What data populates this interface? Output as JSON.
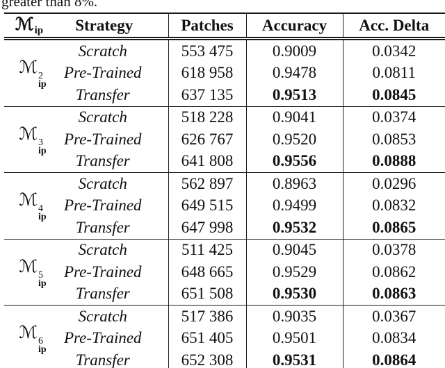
{
  "caption_fragment": "greater than 8%.",
  "table": {
    "symbol_base": "ℳ",
    "symbol_sub": "ip",
    "headers": {
      "strategy": "Strategy",
      "patches": "Patches",
      "accuracy": "Accuracy",
      "delta": "Acc. Delta"
    },
    "groups": [
      {
        "sup": "2",
        "rows": [
          {
            "strategy": "Scratch",
            "patches": "553 475",
            "accuracy": "0.9009",
            "delta": "0.0342"
          },
          {
            "strategy": "Pre-Trained",
            "patches": "618 958",
            "accuracy": "0.9478",
            "delta": "0.0811"
          },
          {
            "strategy": "Transfer",
            "patches": "637 135",
            "accuracy": "0.9513",
            "delta": "0.0845"
          }
        ]
      },
      {
        "sup": "3",
        "rows": [
          {
            "strategy": "Scratch",
            "patches": "518 228",
            "accuracy": "0.9041",
            "delta": "0.0374"
          },
          {
            "strategy": "Pre-Trained",
            "patches": "626 767",
            "accuracy": "0.9520",
            "delta": "0.0853"
          },
          {
            "strategy": "Transfer",
            "patches": "641 808",
            "accuracy": "0.9556",
            "delta": "0.0888"
          }
        ]
      },
      {
        "sup": "4",
        "rows": [
          {
            "strategy": "Scratch",
            "patches": "562 897",
            "accuracy": "0.8963",
            "delta": "0.0296"
          },
          {
            "strategy": "Pre-Trained",
            "patches": "649 515",
            "accuracy": "0.9499",
            "delta": "0.0832"
          },
          {
            "strategy": "Transfer",
            "patches": "647 998",
            "accuracy": "0.9532",
            "delta": "0.0865"
          }
        ]
      },
      {
        "sup": "5",
        "rows": [
          {
            "strategy": "Scratch",
            "patches": "511 425",
            "accuracy": "0.9045",
            "delta": "0.0378"
          },
          {
            "strategy": "Pre-Trained",
            "patches": "648 665",
            "accuracy": "0.9529",
            "delta": "0.0862"
          },
          {
            "strategy": "Transfer",
            "patches": "651 508",
            "accuracy": "0.9530",
            "delta": "0.0863"
          }
        ]
      },
      {
        "sup": "6",
        "rows": [
          {
            "strategy": "Scratch",
            "patches": "517 386",
            "accuracy": "0.9035",
            "delta": "0.0367"
          },
          {
            "strategy": "Pre-Trained",
            "patches": "651 405",
            "accuracy": "0.9501",
            "delta": "0.0834"
          },
          {
            "strategy": "Transfer",
            "patches": "652 308",
            "accuracy": "0.9531",
            "delta": "0.0864"
          }
        ]
      }
    ]
  }
}
